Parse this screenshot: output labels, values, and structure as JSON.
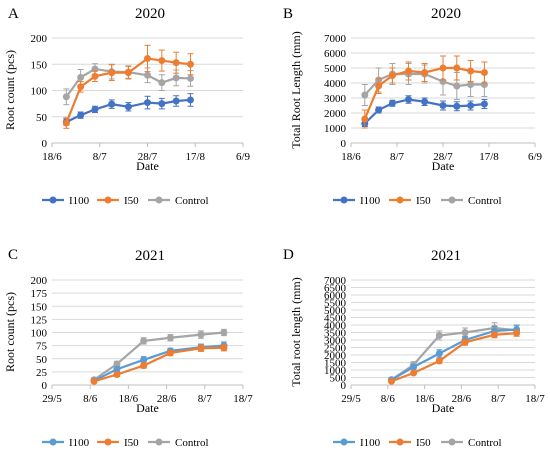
{
  "chart_data": [
    {
      "letter": "A",
      "type": "line",
      "title": "2020",
      "xlabel": "Date",
      "ylabel": "Root count (pcs)",
      "ylim": [
        0,
        200
      ],
      "yticks": [
        0,
        50,
        100,
        150,
        200
      ],
      "xlim": [
        "2020-06-18",
        "2020-09-06"
      ],
      "xticks": [
        "18/6",
        "8/7",
        "28/7",
        "17/8",
        "6/9"
      ],
      "x": [
        "2020-06-24",
        "2020-06-30",
        "2020-07-06",
        "2020-07-13",
        "2020-07-20",
        "2020-07-28",
        "2020-08-03",
        "2020-08-09",
        "2020-08-15"
      ],
      "series": [
        {
          "name": "I100",
          "color": "#4472C4",
          "values": [
            40,
            53,
            64,
            74,
            69,
            77,
            75,
            80,
            82
          ],
          "err": [
            6,
            6,
            6,
            8,
            8,
            12,
            10,
            10,
            12
          ]
        },
        {
          "name": "I50",
          "color": "#ED7D31",
          "values": [
            38,
            107,
            127,
            134,
            134,
            161,
            157,
            153,
            150
          ],
          "err": [
            10,
            10,
            10,
            15,
            12,
            25,
            20,
            20,
            20
          ]
        },
        {
          "name": "Control",
          "color": "#A5A5A5",
          "values": [
            88,
            125,
            141,
            136,
            135,
            129,
            115,
            124,
            123
          ],
          "err": [
            15,
            15,
            10,
            14,
            12,
            14,
            15,
            15,
            15
          ]
        }
      ],
      "legend": "bottom"
    },
    {
      "letter": "B",
      "type": "line",
      "title": "2020",
      "xlabel": "Date",
      "ylabel": "Total Root Length (mm)",
      "ylim": [
        0,
        7000
      ],
      "yticks": [
        0,
        1000,
        2000,
        3000,
        4000,
        5000,
        6000,
        7000
      ],
      "xlim": [
        "2020-06-18",
        "2020-09-06"
      ],
      "xticks": [
        "18/6",
        "8/7",
        "28/7",
        "17/8",
        "6/9"
      ],
      "x": [
        "2020-06-24",
        "2020-06-30",
        "2020-07-06",
        "2020-07-13",
        "2020-07-20",
        "2020-07-28",
        "2020-08-03",
        "2020-08-09",
        "2020-08-15"
      ],
      "series": [
        {
          "name": "I100",
          "color": "#4472C4",
          "values": [
            1300,
            2200,
            2650,
            2900,
            2750,
            2500,
            2450,
            2500,
            2600
          ],
          "err": [
            200,
            200,
            200,
            250,
            250,
            300,
            300,
            300,
            300
          ]
        },
        {
          "name": "I50",
          "color": "#ED7D31",
          "values": [
            1600,
            3800,
            4500,
            4800,
            4700,
            5000,
            5000,
            4800,
            4700
          ],
          "err": [
            600,
            500,
            500,
            600,
            600,
            800,
            800,
            700,
            700
          ]
        },
        {
          "name": "Control",
          "color": "#A5A5A5",
          "values": [
            3200,
            4200,
            4600,
            4600,
            4600,
            4100,
            3800,
            3900,
            3900
          ],
          "err": [
            700,
            800,
            700,
            700,
            600,
            900,
            900,
            800,
            800
          ]
        }
      ],
      "legend": "bottom"
    },
    {
      "letter": "C",
      "type": "line",
      "title": "2021",
      "xlabel": "Date",
      "ylabel": "Root count (pcs)",
      "ylim": [
        0,
        200
      ],
      "yticks": [
        0,
        25,
        50,
        75,
        100,
        125,
        150,
        175,
        200
      ],
      "xlim": [
        "2021-05-29",
        "2021-07-18"
      ],
      "xticks": [
        "29/5",
        "8/6",
        "18/6",
        "28/6",
        "8/7",
        "18/7"
      ],
      "x": [
        "2021-06-09",
        "2021-06-15",
        "2021-06-22",
        "2021-06-29",
        "2021-07-07",
        "2021-07-13"
      ],
      "series": [
        {
          "name": "I100",
          "color": "#5B9BD5",
          "values": [
            8,
            30,
            48,
            65,
            72,
            75
          ],
          "err": [
            3,
            5,
            6,
            5,
            6,
            7
          ]
        },
        {
          "name": "I50",
          "color": "#ED7D31",
          "values": [
            7,
            20,
            37,
            61,
            70,
            71
          ],
          "err": [
            3,
            4,
            5,
            5,
            6,
            6
          ]
        },
        {
          "name": "Control",
          "color": "#A5A5A5",
          "values": [
            10,
            40,
            84,
            90,
            96,
            100
          ],
          "err": [
            3,
            5,
            6,
            6,
            7,
            6
          ]
        }
      ],
      "legend": "bottom"
    },
    {
      "letter": "D",
      "type": "line",
      "title": "2021",
      "xlabel": "Date",
      "ylabel": "Total root length (mm)",
      "ylim": [
        0,
        7000
      ],
      "yticks": [
        0,
        500,
        1000,
        1500,
        2000,
        2500,
        3000,
        3500,
        4000,
        4500,
        5000,
        5500,
        6000,
        6500,
        7000
      ],
      "xlim": [
        "2021-05-29",
        "2021-07-18"
      ],
      "xticks": [
        "29/5",
        "8/6",
        "18/6",
        "28/6",
        "8/7",
        "18/7"
      ],
      "x": [
        "2021-06-09",
        "2021-06-15",
        "2021-06-22",
        "2021-06-29",
        "2021-07-07",
        "2021-07-13"
      ],
      "series": [
        {
          "name": "I100",
          "color": "#5B9BD5",
          "values": [
            350,
            1200,
            2100,
            3000,
            3600,
            3700
          ],
          "err": [
            100,
            150,
            250,
            250,
            300,
            300
          ]
        },
        {
          "name": "I50",
          "color": "#ED7D31",
          "values": [
            250,
            800,
            1600,
            2850,
            3350,
            3450
          ],
          "err": [
            80,
            100,
            150,
            200,
            200,
            200
          ]
        },
        {
          "name": "Control",
          "color": "#A5A5A5",
          "values": [
            350,
            1350,
            3300,
            3500,
            3800,
            3650
          ],
          "err": [
            100,
            200,
            300,
            300,
            350,
            300
          ]
        }
      ],
      "legend": "bottom"
    }
  ]
}
